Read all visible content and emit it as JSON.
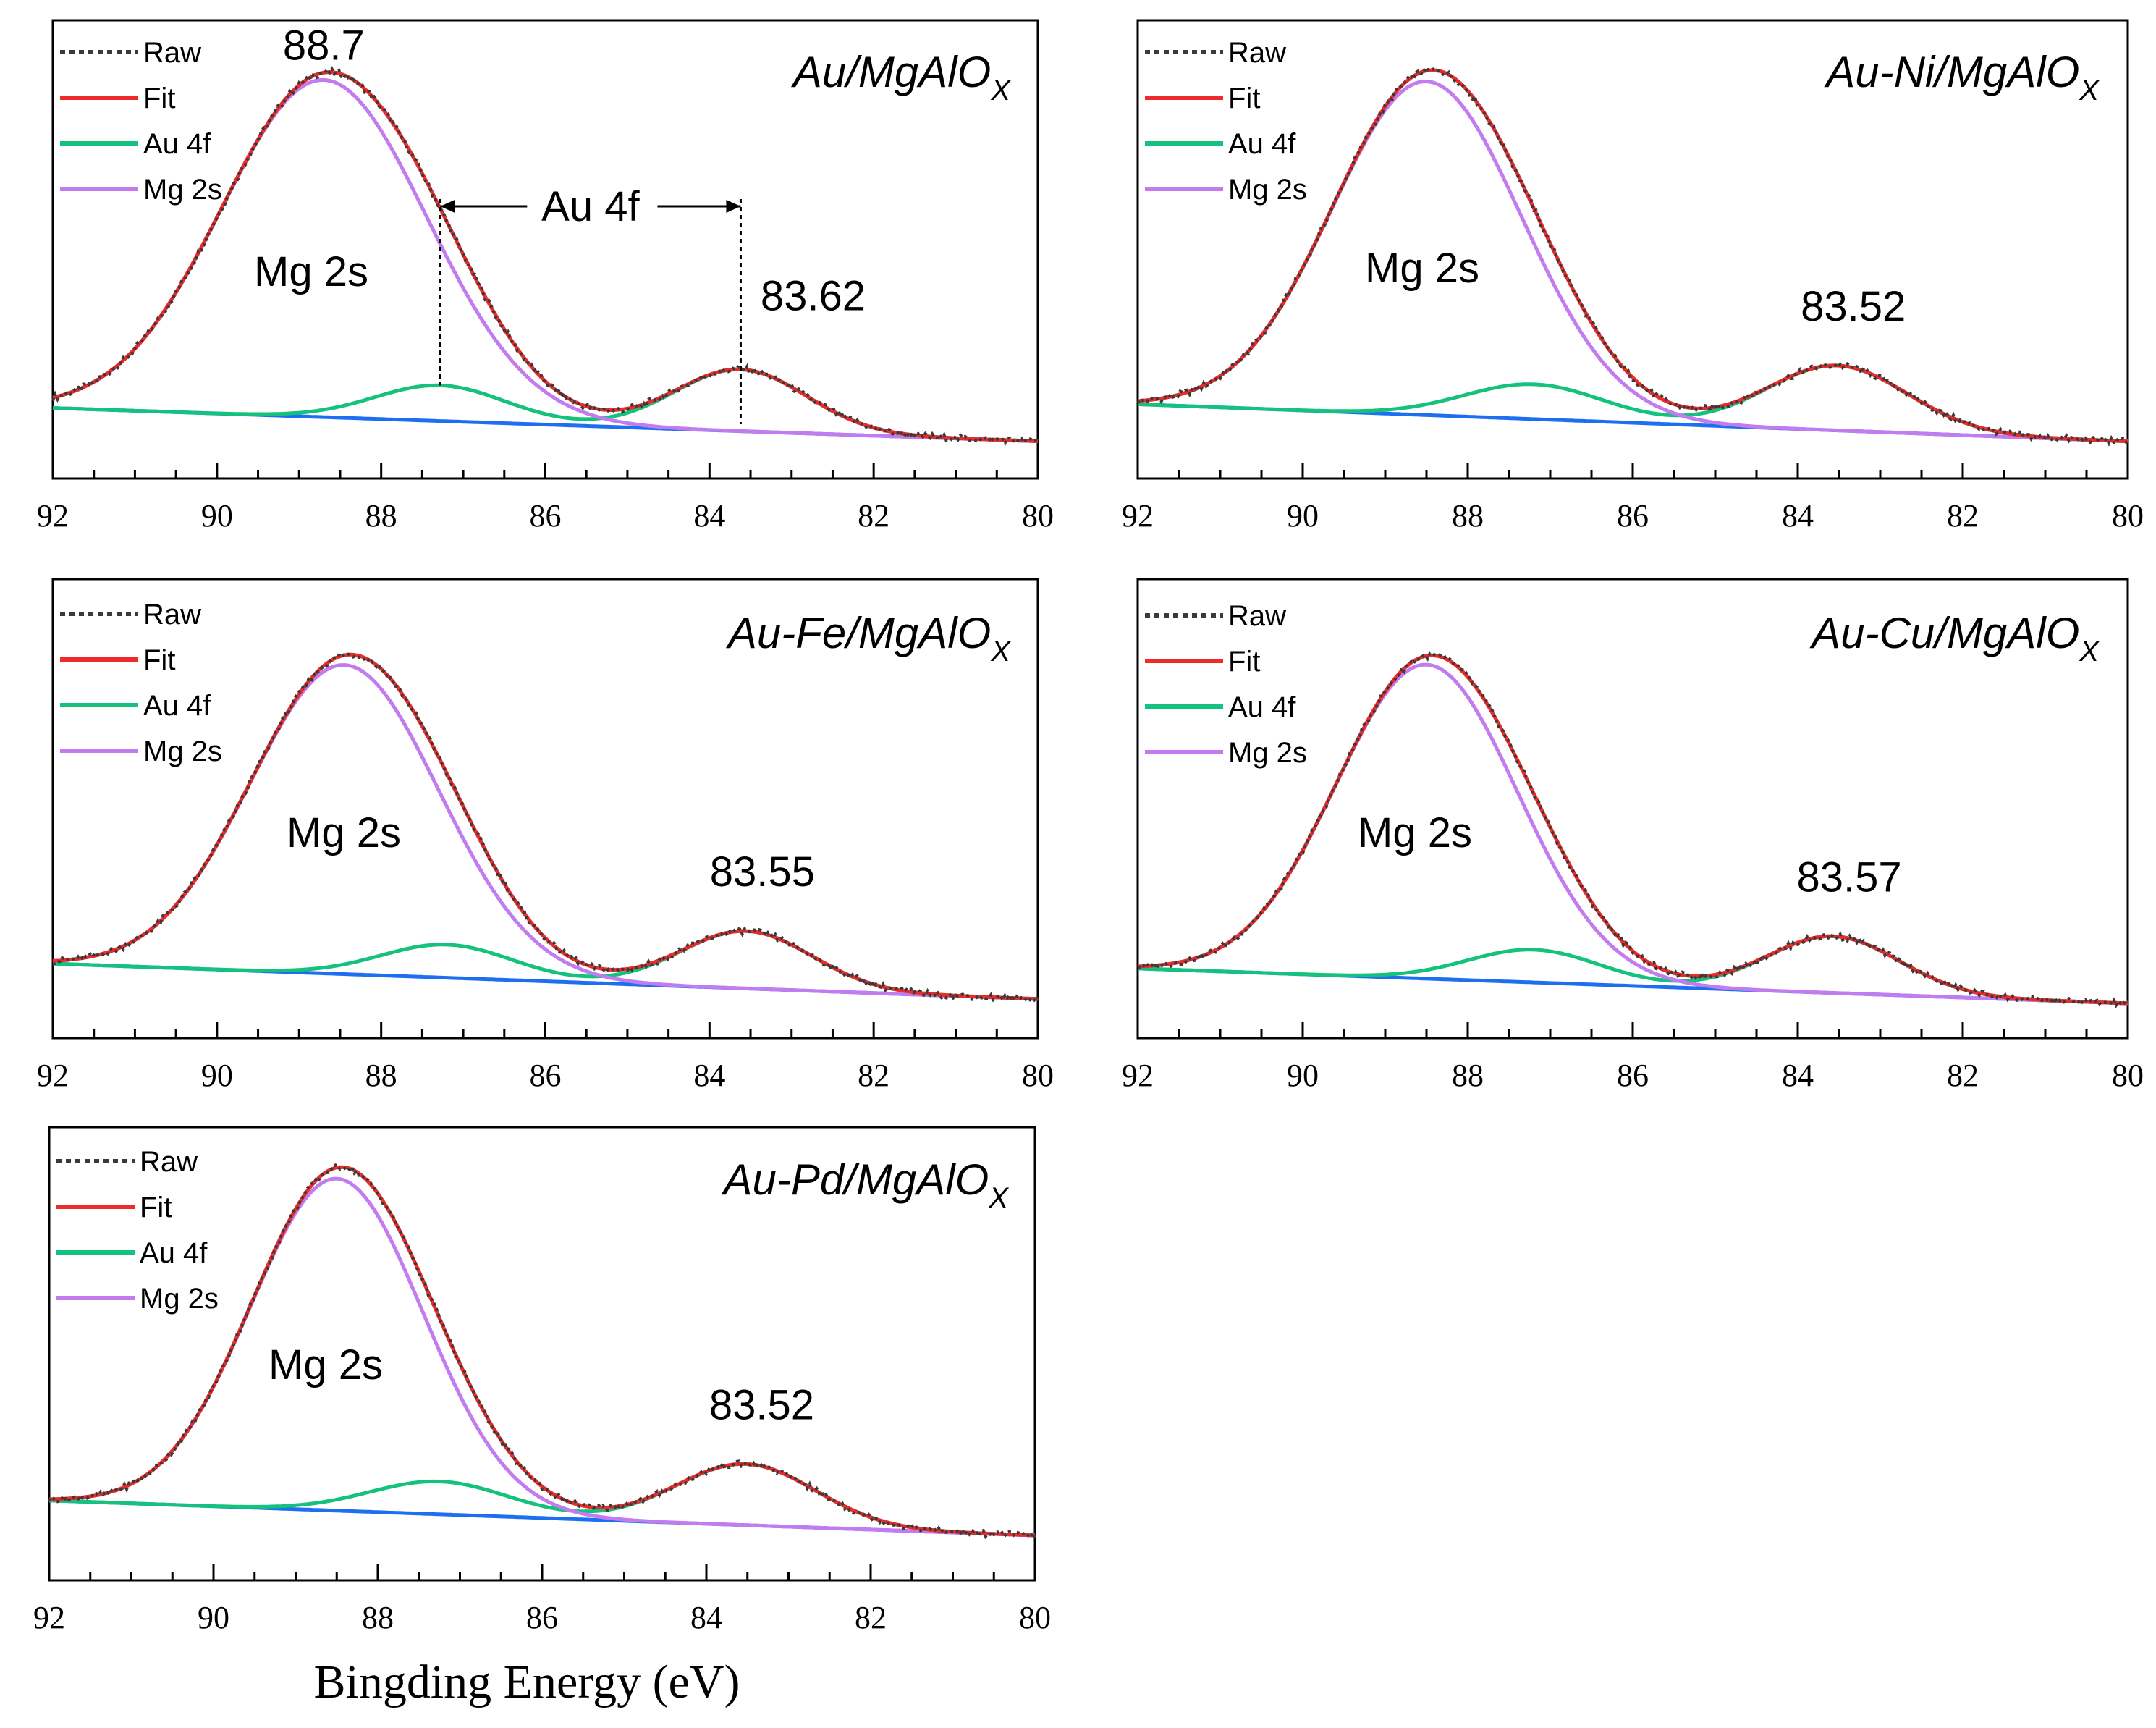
{
  "figure": {
    "xlabel": "Bingding Energy (eV)",
    "colors": {
      "raw": "#3a3a3a",
      "fit": "#ee2b2b",
      "au4f": "#14c27e",
      "mg2s": "#c27cf0",
      "baseline": "#1e6ff0",
      "axis": "#000000"
    }
  },
  "chart_data": [
    {
      "type": "line",
      "title": "Au/MgAlO",
      "title_sub": "X",
      "xlim": [
        92,
        80
      ],
      "xticks": [
        92,
        90,
        88,
        86,
        84,
        82,
        80
      ],
      "legend": [
        "Raw",
        "Fit",
        "Au 4f",
        "Mg 2s"
      ],
      "series": [
        {
          "name": "Mg 2s",
          "center": 88.7,
          "sigma": 1.25,
          "amplitude": 71
        },
        {
          "name": "Au 4f (5/2)",
          "center": 87.28,
          "sigma": 0.8,
          "amplitude": 7.5
        },
        {
          "name": "Au 4f (7/2)",
          "center": 83.62,
          "sigma": 0.8,
          "amplitude": 13
        }
      ],
      "baseline": [
        8,
        1
      ],
      "annotations": {
        "mg_label": "Mg 2s",
        "mg_peak": "88.7",
        "au_peak": "83.62",
        "bracket": "Au 4f"
      }
    },
    {
      "type": "line",
      "title": "Au-Ni/MgAlO",
      "title_sub": "X",
      "xlim": [
        92,
        80
      ],
      "xticks": [
        92,
        90,
        88,
        86,
        84,
        82,
        80
      ],
      "legend": [
        "Raw",
        "Fit",
        "Au 4f",
        "Mg 2s"
      ],
      "series": [
        {
          "name": "Mg 2s",
          "center": 88.5,
          "sigma": 1.15,
          "amplitude": 72
        },
        {
          "name": "Au 4f (5/2)",
          "center": 87.2,
          "sigma": 0.85,
          "amplitude": 7.5
        },
        {
          "name": "Au 4f (7/2)",
          "center": 83.52,
          "sigma": 0.85,
          "amplitude": 14
        }
      ],
      "baseline": [
        9,
        1
      ],
      "annotations": {
        "mg_label": "Mg 2s",
        "au_peak": "83.52"
      }
    },
    {
      "type": "line",
      "title": "Au-Fe/MgAlO",
      "title_sub": "X",
      "xlim": [
        92,
        80
      ],
      "xticks": [
        92,
        90,
        88,
        86,
        84,
        82,
        80
      ],
      "legend": [
        "Raw",
        "Fit",
        "Au 4f",
        "Mg 2s"
      ],
      "series": [
        {
          "name": "Mg 2s",
          "center": 88.45,
          "sigma": 1.15,
          "amplitude": 70
        },
        {
          "name": "Au 4f (5/2)",
          "center": 87.2,
          "sigma": 0.8,
          "amplitude": 7.5
        },
        {
          "name": "Au 4f (7/2)",
          "center": 83.55,
          "sigma": 0.8,
          "amplitude": 13
        }
      ],
      "baseline": [
        9,
        1
      ],
      "annotations": {
        "mg_label": "Mg 2s",
        "au_peak": "83.55"
      }
    },
    {
      "type": "line",
      "title": "Au-Cu/MgAlO",
      "title_sub": "X",
      "xlim": [
        92,
        80
      ],
      "xticks": [
        92,
        90,
        88,
        86,
        84,
        82,
        80
      ],
      "legend": [
        "Raw",
        "Fit",
        "Au 4f",
        "Mg 2s"
      ],
      "series": [
        {
          "name": "Mg 2s",
          "center": 88.5,
          "sigma": 1.1,
          "amplitude": 72
        },
        {
          "name": "Au 4f (5/2)",
          "center": 87.2,
          "sigma": 0.8,
          "amplitude": 7.5
        },
        {
          "name": "Au 4f (7/2)",
          "center": 83.57,
          "sigma": 0.8,
          "amplitude": 13
        }
      ],
      "baseline": [
        9,
        1
      ],
      "annotations": {
        "mg_label": "Mg 2s",
        "au_peak": "83.57"
      }
    },
    {
      "type": "line",
      "title": "Au-Pd/MgAlO",
      "title_sub": "X",
      "xlim": [
        92,
        80
      ],
      "xticks": [
        92,
        90,
        88,
        86,
        84,
        82,
        80
      ],
      "legend": [
        "Raw",
        "Fit",
        "Au 4f",
        "Mg 2s"
      ],
      "series": [
        {
          "name": "Mg 2s",
          "center": 88.5,
          "sigma": 1.05,
          "amplitude": 76
        },
        {
          "name": "Au 4f (5/2)",
          "center": 87.25,
          "sigma": 0.85,
          "amplitude": 7.5
        },
        {
          "name": "Au 4f (7/2)",
          "center": 83.52,
          "sigma": 0.85,
          "amplitude": 14
        }
      ],
      "baseline": [
        9,
        1
      ],
      "annotations": {
        "mg_label": "Mg 2s",
        "au_peak": "83.52"
      }
    }
  ]
}
